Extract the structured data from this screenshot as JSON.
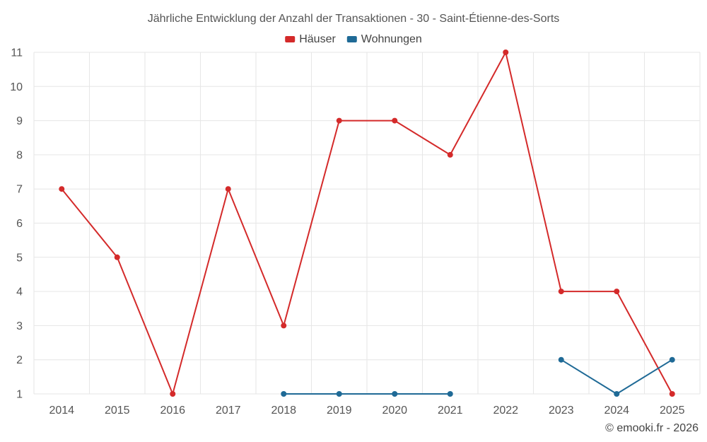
{
  "chart_data": {
    "type": "line",
    "title": "Jährliche Entwicklung der Anzahl der Transaktionen - 30 - Saint-Étienne-des-Sorts",
    "xlabel": "",
    "ylabel": "",
    "categories": [
      "2014",
      "2015",
      "2016",
      "2017",
      "2018",
      "2019",
      "2020",
      "2021",
      "2022",
      "2023",
      "2024",
      "2025"
    ],
    "ylim": [
      1,
      11
    ],
    "yticks": [
      1,
      2,
      3,
      4,
      5,
      6,
      7,
      8,
      9,
      10,
      11
    ],
    "grid": true,
    "legend_position": "top-center",
    "series": [
      {
        "name": "Häuser",
        "color": "#d42a2a",
        "values": [
          7,
          5,
          1,
          7,
          3,
          9,
          9,
          8,
          11,
          4,
          4,
          1
        ]
      },
      {
        "name": "Wohnungen",
        "color": "#1f6a96",
        "values": [
          null,
          null,
          null,
          null,
          1,
          1,
          1,
          1,
          null,
          2,
          1,
          2
        ]
      }
    ]
  },
  "credit": "© emooki.fr - 2026"
}
